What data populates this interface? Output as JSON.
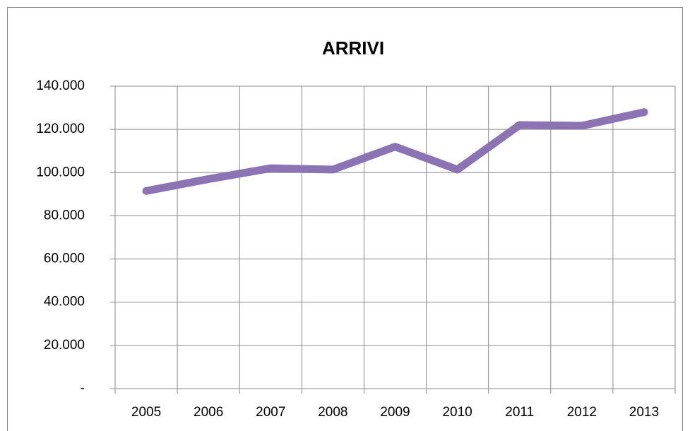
{
  "chart_data": {
    "type": "line",
    "title": "ARRIVI",
    "categories": [
      "2005",
      "2006",
      "2007",
      "2008",
      "2009",
      "2010",
      "2011",
      "2012",
      "2013"
    ],
    "series": [
      {
        "name": "ARRIVI",
        "color": "#8c73b4",
        "values": [
          91500,
          97000,
          102000,
          101400,
          112000,
          101400,
          122000,
          121700,
          128000
        ]
      }
    ],
    "ylim": [
      0,
      140000
    ],
    "yticks": [
      {
        "value": 0,
        "label": "-"
      },
      {
        "value": 20000,
        "label": "20.000"
      },
      {
        "value": 40000,
        "label": "40.000"
      },
      {
        "value": 60000,
        "label": "60.000"
      },
      {
        "value": 80000,
        "label": "80.000"
      },
      {
        "value": 100000,
        "label": "100.000"
      },
      {
        "value": 120000,
        "label": "120.000"
      },
      {
        "value": 140000,
        "label": "140.000"
      }
    ],
    "grid": true
  }
}
